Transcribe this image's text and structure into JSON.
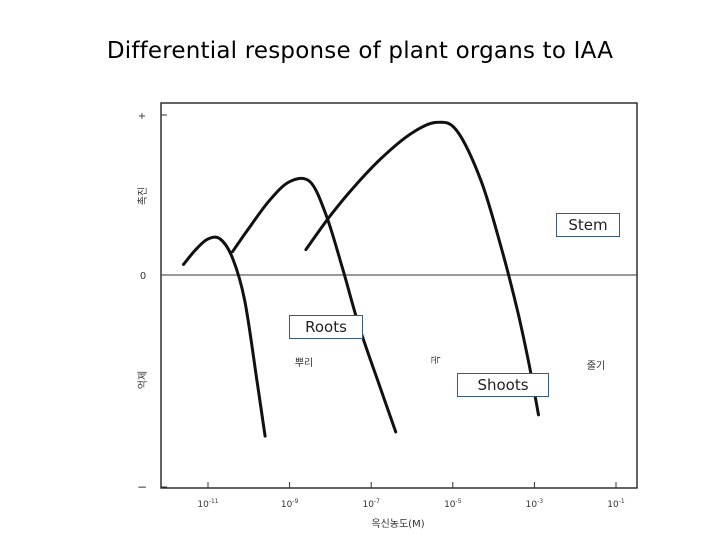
{
  "title": "Differential response of plant organs to IAA",
  "chart_data": {
    "type": "line",
    "x_scale": "log",
    "xlabel": "옥신농도(M)",
    "ylabel_top": "촉진",
    "ylabel_bottom": "억제",
    "x_ticks": [
      {
        "value": 1e-11,
        "base": "10",
        "exp": "-11"
      },
      {
        "value": 1e-09,
        "base": "10",
        "exp": "-9"
      },
      {
        "value": 1e-07,
        "base": "10",
        "exp": "-7"
      },
      {
        "value": 1e-05,
        "base": "10",
        "exp": "-5"
      },
      {
        "value": 0.001,
        "base": "10",
        "exp": "-3"
      },
      {
        "value": 0.1,
        "base": "10",
        "exp": "-1"
      }
    ],
    "y_ticks": [
      "+",
      "0",
      "−"
    ],
    "ylim": [
      -1,
      1
    ],
    "xlim_log10": [
      -12,
      -0.5
    ],
    "grid": false,
    "series": [
      {
        "name": "뿌리",
        "points": [
          [
            -11.6,
            0.05
          ],
          [
            -11.3,
            0.12
          ],
          [
            -11.0,
            0.17
          ],
          [
            -10.7,
            0.17
          ],
          [
            -10.4,
            0.08
          ],
          [
            -10.1,
            -0.12
          ],
          [
            -9.8,
            -0.5
          ],
          [
            -9.6,
            -0.76
          ]
        ]
      },
      {
        "name": "눈",
        "points": [
          [
            -10.4,
            0.11
          ],
          [
            -10.0,
            0.22
          ],
          [
            -9.5,
            0.35
          ],
          [
            -9.0,
            0.44
          ],
          [
            -8.5,
            0.44
          ],
          [
            -8.1,
            0.28
          ],
          [
            -7.7,
            0.03
          ],
          [
            -7.3,
            -0.24
          ],
          [
            -6.8,
            -0.52
          ],
          [
            -6.4,
            -0.74
          ]
        ]
      },
      {
        "name": "줄기",
        "points": [
          [
            -8.6,
            0.12
          ],
          [
            -8.0,
            0.28
          ],
          [
            -7.4,
            0.42
          ],
          [
            -6.7,
            0.56
          ],
          [
            -6.0,
            0.67
          ],
          [
            -5.4,
            0.72
          ],
          [
            -4.9,
            0.68
          ],
          [
            -4.3,
            0.44
          ],
          [
            -3.8,
            0.12
          ],
          [
            -3.4,
            -0.18
          ],
          [
            -3.1,
            -0.45
          ],
          [
            -2.9,
            -0.66
          ]
        ]
      }
    ]
  },
  "annotations": {
    "stem": "Stem",
    "roots": "Roots",
    "shoots": "Shoots"
  }
}
